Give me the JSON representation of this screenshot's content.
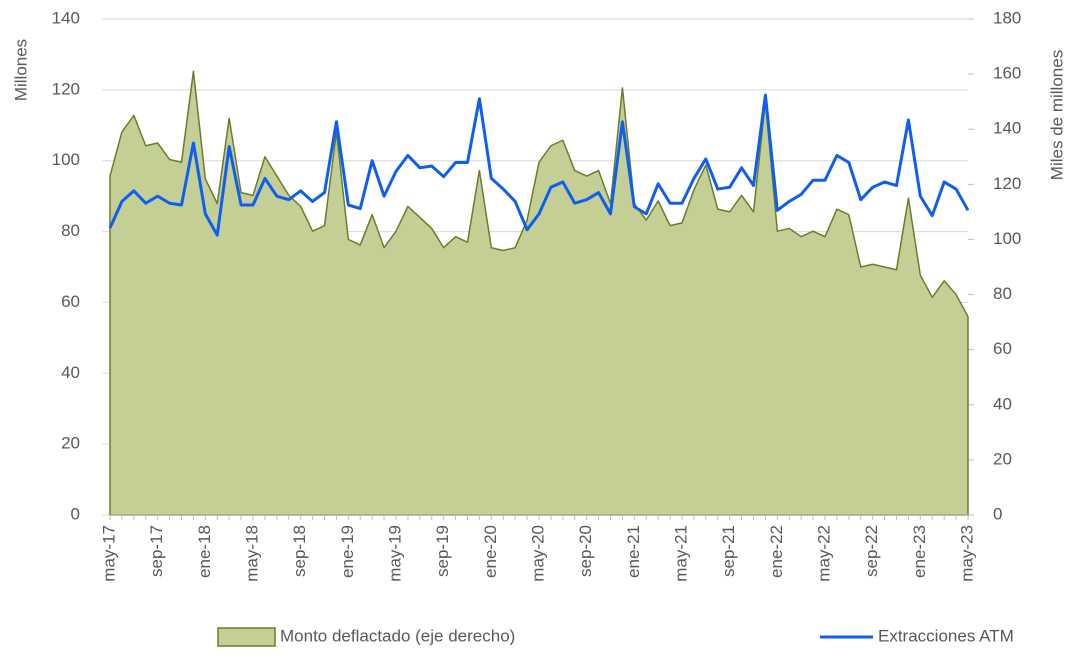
{
  "chart_data": {
    "type": "area_line",
    "categories": [
      "may-17",
      null,
      null,
      null,
      "sep-17",
      null,
      null,
      null,
      "ene-18",
      null,
      null,
      null,
      "may-18",
      null,
      null,
      null,
      "sep-18",
      null,
      null,
      null,
      "ene-19",
      null,
      null,
      null,
      "may-19",
      null,
      null,
      null,
      "sep-19",
      null,
      null,
      null,
      "ene-20",
      null,
      null,
      null,
      "may-20",
      null,
      null,
      null,
      "sep-20",
      null,
      null,
      null,
      "ene-21",
      null,
      null,
      null,
      "may-21",
      null,
      null,
      null,
      "sep-21",
      null,
      null,
      null,
      "ene-22",
      null,
      null,
      null,
      "may-22",
      null,
      null,
      null,
      "sep-22",
      null,
      null,
      null,
      "ene-23",
      null,
      null,
      null,
      "may-23"
    ],
    "ylabel": "Millones",
    "y2label": "Miles de millones",
    "ylim": [
      0,
      140
    ],
    "yticks": [
      0,
      20,
      40,
      60,
      80,
      100,
      120,
      140
    ],
    "y2lim": [
      0,
      180
    ],
    "y2ticks": [
      0,
      20,
      40,
      60,
      80,
      100,
      120,
      140,
      160,
      180
    ],
    "grid": true,
    "legend": "bottom",
    "series": [
      {
        "name": "Monto deflactado (eje derecho)",
        "kind": "area",
        "axis": "y2",
        "color": "#c4cf96",
        "edge_color": "#6b7d2a",
        "values": [
          123,
          139,
          145,
          134,
          135,
          129,
          128,
          161,
          122,
          113,
          144,
          117,
          116,
          130,
          123,
          116,
          112,
          103,
          105,
          139,
          100,
          98,
          109,
          97,
          103,
          112,
          108,
          104,
          97,
          101,
          99,
          125,
          97,
          96,
          97,
          107,
          128,
          134,
          136,
          125,
          123,
          125,
          113,
          155,
          113,
          107,
          114,
          105,
          106,
          118,
          127,
          111,
          110,
          116,
          110,
          150,
          103,
          104,
          101,
          103,
          101,
          111,
          109,
          90,
          91,
          90,
          89,
          115,
          87,
          79,
          85,
          80,
          72
        ]
      },
      {
        "name": "Extracciones ATM",
        "kind": "line",
        "axis": "y",
        "color": "#0f5ef0",
        "values": [
          81,
          88.5,
          91.5,
          88,
          90,
          88,
          87.5,
          105,
          85,
          79,
          104,
          87.5,
          87.5,
          95,
          90,
          89,
          91.5,
          88.5,
          91,
          111,
          87.5,
          86.5,
          100,
          90,
          97,
          101.5,
          98,
          98.5,
          95.5,
          99.5,
          99.5,
          117.5,
          95,
          92,
          88.5,
          80.5,
          85,
          92.5,
          94,
          88,
          89,
          91,
          85,
          111,
          87,
          85,
          93.5,
          88,
          88,
          95,
          100.5,
          92,
          92.5,
          98,
          93,
          118.5,
          86,
          88.5,
          90.5,
          94.5,
          94.5,
          101.5,
          99.5,
          89,
          92.5,
          94,
          93,
          111.5,
          90,
          84.5,
          94,
          92,
          86
        ]
      }
    ]
  }
}
